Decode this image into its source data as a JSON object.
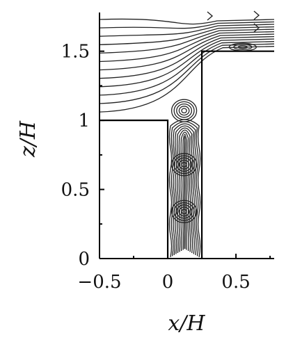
{
  "figure": {
    "x_axis_title": "x/H",
    "y_axis_title": "z/H",
    "x_ticks": [
      {
        "label": "−0.5",
        "value": -0.5
      },
      {
        "label": "0",
        "value": 0
      },
      {
        "label": "0.5",
        "value": 0.5
      }
    ],
    "y_ticks": [
      {
        "label": "0",
        "value": 0
      },
      {
        "label": "0.5",
        "value": 0.5
      },
      {
        "label": "1",
        "value": 1
      },
      {
        "label": "1.5",
        "value": 1.5
      }
    ],
    "x_range": [
      -0.5,
      0.78
    ],
    "y_range": [
      0,
      1.78
    ],
    "upstream_building_height": 1.0,
    "downstream_building_height": 1.5,
    "street_canyon_x": [
      0,
      0.25
    ],
    "vortex_centers_z": [
      1.07,
      0.68,
      0.34,
      1.53
    ]
  }
}
